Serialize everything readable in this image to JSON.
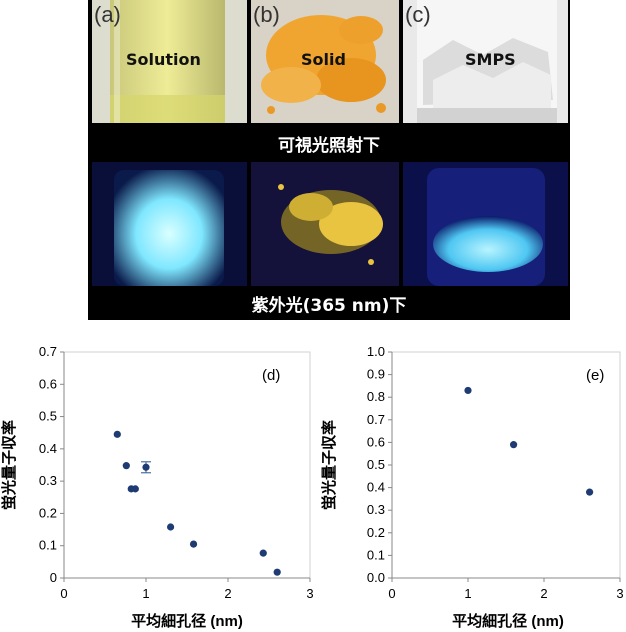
{
  "photos": {
    "panels": [
      {
        "tag": "(a)",
        "sample": "Solution",
        "visible_color": "#e7e58a",
        "uv_color": "#8ef2ff"
      },
      {
        "tag": "(b)",
        "sample": "Solid",
        "visible_color": "#f0a530",
        "uv_color": "#e9c441"
      },
      {
        "tag": "(c)",
        "sample": "SMPS",
        "visible_color": "#eeeeee",
        "uv_color": "#7fe0ff"
      }
    ],
    "caption_visible": "可視光照射下",
    "caption_uv": "紫外光(365 nm)下"
  },
  "chart_data": [
    {
      "type": "scatter",
      "panel_label": "(d)",
      "xlabel": "平均細孔径 (nm)",
      "ylabel": "蛍光量子収率",
      "xlim": [
        0,
        3
      ],
      "ylim": [
        0,
        0.7
      ],
      "xticks": [
        "0",
        "1",
        "2",
        "3"
      ],
      "yticks": [
        "0",
        "0.1",
        "0.2",
        "0.3",
        "0.4",
        "0.5",
        "0.6",
        "0.7"
      ],
      "grid": false,
      "marker_color": "#1f3b73",
      "points": [
        {
          "x": 0.65,
          "y": 0.445
        },
        {
          "x": 0.76,
          "y": 0.348
        },
        {
          "x": 0.82,
          "y": 0.276
        },
        {
          "x": 0.87,
          "y": 0.276
        },
        {
          "x": 1.0,
          "y": 0.343,
          "err": 0.017
        },
        {
          "x": 1.3,
          "y": 0.158
        },
        {
          "x": 1.58,
          "y": 0.105
        },
        {
          "x": 2.43,
          "y": 0.077
        },
        {
          "x": 2.6,
          "y": 0.018
        }
      ]
    },
    {
      "type": "scatter",
      "panel_label": "(e)",
      "xlabel": "平均細孔径 (nm)",
      "ylabel": "蛍光量子収率",
      "xlim": [
        0,
        3
      ],
      "ylim": [
        0,
        1.0
      ],
      "xticks": [
        "0",
        "1",
        "2",
        "3"
      ],
      "yticks": [
        "0.0",
        "0.1",
        "0.2",
        "0.3",
        "0.4",
        "0.5",
        "0.6",
        "0.7",
        "0.8",
        "0.9",
        "1.0"
      ],
      "grid": false,
      "marker_color": "#1f3b73",
      "points": [
        {
          "x": 1.0,
          "y": 0.83
        },
        {
          "x": 1.6,
          "y": 0.59
        },
        {
          "x": 2.6,
          "y": 0.38
        }
      ]
    }
  ]
}
